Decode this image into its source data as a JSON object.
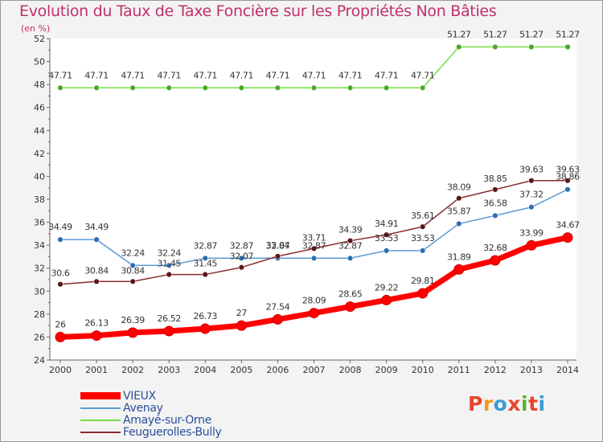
{
  "header": {
    "title": "Evolution du Taux de Taxe Foncière sur les Propriétés Non Bâties",
    "unit": "(en %)"
  },
  "logo": {
    "text": "Proxiti",
    "colors": [
      "#e8452c",
      "#f39a1c",
      "#3c9bd6",
      "#e8452c",
      "#5bb134",
      "#e8452c",
      "#3c9bd6"
    ]
  },
  "chart_data": {
    "type": "line",
    "title": "Evolution du Taux de Taxe Foncière sur les Propriétés Non Bâties",
    "ylabel": "(en %)",
    "xlabel": "",
    "x": [
      "2000",
      "2001",
      "2002",
      "2003",
      "2004",
      "2005",
      "2006",
      "2007",
      "2008",
      "2009",
      "2010",
      "2011",
      "2012",
      "2013",
      "2014"
    ],
    "ylim": [
      24,
      52
    ],
    "yticks": [
      24,
      26,
      28,
      30,
      32,
      34,
      36,
      38,
      40,
      42,
      44,
      46,
      48,
      50,
      52
    ],
    "grid": false,
    "legend_position": "bottom-left",
    "series": [
      {
        "name": "VIEUX",
        "color": "#ff0000",
        "values": [
          26,
          26.13,
          26.39,
          26.52,
          26.73,
          27,
          27.54,
          28.09,
          28.65,
          29.22,
          29.81,
          31.89,
          32.68,
          33.99,
          34.67
        ],
        "labels": [
          "26",
          "26.13",
          "26.39",
          "26.52",
          "26.73",
          "27",
          "27.54",
          "28.09",
          "28.65",
          "29.22",
          "29.81",
          "31.89",
          "32.68",
          "33.99",
          "34.67"
        ]
      },
      {
        "name": "Avenay",
        "color": "#5b9bd5",
        "values": [
          34.49,
          34.49,
          32.24,
          32.24,
          32.87,
          32.87,
          32.87,
          32.87,
          32.87,
          33.53,
          33.53,
          35.87,
          36.58,
          37.32,
          38.86
        ],
        "labels": [
          "34.49",
          "34.49",
          "32.24",
          "32.24",
          "32.87",
          "32.87",
          "32.87",
          "32.87",
          "32.87",
          "33.53",
          "33.53",
          "35.87",
          "36.58",
          "37.32",
          "38.86"
        ]
      },
      {
        "name": "Amayé-sur-Orne",
        "color": "#77dd44",
        "values": [
          47.71,
          47.71,
          47.71,
          47.71,
          47.71,
          47.71,
          47.71,
          47.71,
          47.71,
          47.71,
          47.71,
          51.27,
          51.27,
          51.27,
          51.27
        ],
        "labels": [
          "47.71",
          "47.71",
          "47.71",
          "47.71",
          "47.71",
          "47.71",
          "47.71",
          "47.71",
          "47.71",
          "47.71",
          "47.71",
          "51.27",
          "51.27",
          "51.27",
          "51.27"
        ]
      },
      {
        "name": "Feuguerolles-Bully",
        "color": "#8b2b2b",
        "values": [
          30.6,
          30.84,
          30.84,
          31.45,
          31.45,
          32.07,
          33.04,
          33.71,
          34.39,
          34.91,
          35.61,
          38.09,
          38.85,
          39.63,
          39.63
        ],
        "labels": [
          "30.6",
          "30.84",
          "30.84",
          "31.45",
          "31.45",
          "32.07",
          "33.04",
          "33.71",
          "34.39",
          "34.91",
          "35.61",
          "38.09",
          "38.85",
          "39.63",
          "39.63"
        ]
      }
    ]
  }
}
